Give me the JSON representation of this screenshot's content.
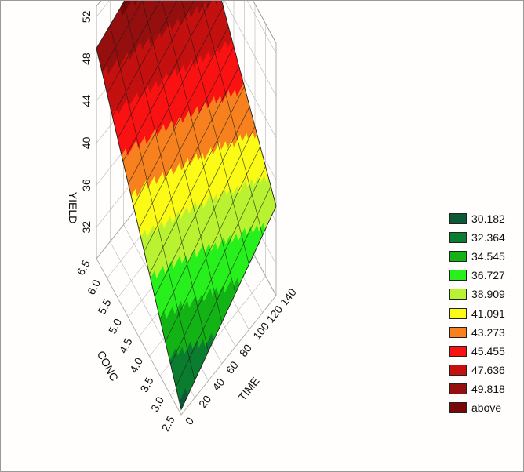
{
  "chart_data": {
    "type": "surface3d",
    "title": "",
    "xlabel": "TIME",
    "ylabel": "CONC",
    "zlabel": "YIELD",
    "x_ticks": [
      "0",
      "20",
      "40",
      "60",
      "80",
      "100",
      "120",
      "140"
    ],
    "y_ticks": [
      "2.5",
      "3.0",
      "3.5",
      "4.0",
      "4.5",
      "5.0",
      "5.5",
      "6.0",
      "6.5"
    ],
    "z_ticks": [
      "32",
      "36",
      "40",
      "44",
      "48",
      "52"
    ],
    "xlim": [
      0,
      140
    ],
    "ylim": [
      2.5,
      6.5
    ],
    "zlim": [
      29,
      53
    ],
    "surface_corners": [
      {
        "time": 0,
        "conc": 2.5,
        "yield": 29.5
      },
      {
        "time": 140,
        "conc": 2.5,
        "yield": 37.5
      },
      {
        "time": 0,
        "conc": 6.5,
        "yield": 49
      },
      {
        "time": 140,
        "conc": 6.5,
        "yield": 53
      }
    ],
    "legend": {
      "placement": "right",
      "items": [
        {
          "label": "30.182",
          "color": "#0b5a36"
        },
        {
          "label": "32.364",
          "color": "#0a7d2e"
        },
        {
          "label": "34.545",
          "color": "#13b316"
        },
        {
          "label": "36.727",
          "color": "#27f01c"
        },
        {
          "label": "38.909",
          "color": "#b8f231"
        },
        {
          "label": "41.091",
          "color": "#fbfb17"
        },
        {
          "label": "43.273",
          "color": "#f7811e"
        },
        {
          "label": "45.455",
          "color": "#fa1212"
        },
        {
          "label": "47.636",
          "color": "#c51010"
        },
        {
          "label": "49.818",
          "color": "#950f0f"
        },
        {
          "label": "above",
          "color": "#7a0707"
        }
      ]
    }
  }
}
